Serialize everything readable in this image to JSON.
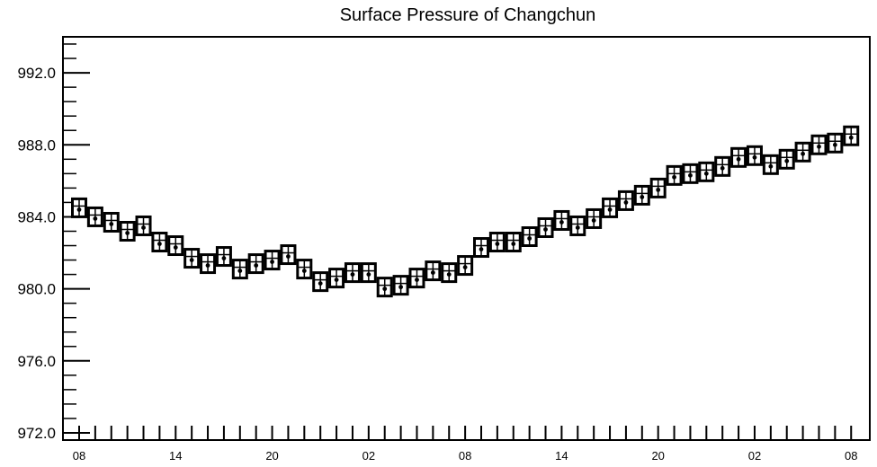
{
  "chart_data": {
    "type": "scatter",
    "title": "Surface Pressure of Changchun",
    "xlabel": "",
    "ylabel": "",
    "ylim": [
      971.6,
      994.0
    ],
    "y_ticks": [
      "972.0",
      "976.0",
      "980.0",
      "984.0",
      "988.0",
      "992.0"
    ],
    "y_tick_values": [
      972,
      976,
      980,
      984,
      988,
      992
    ],
    "x_tick_labels": [
      "08",
      "14",
      "20",
      "02",
      "08",
      "14",
      "20",
      "02",
      "08"
    ],
    "x_tick_indices": [
      0,
      6,
      12,
      18,
      24,
      30,
      36,
      42,
      48
    ],
    "grid": false,
    "series": [
      {
        "values": [
          984.4,
          983.9,
          983.6,
          983.1,
          983.4,
          982.5,
          982.3,
          981.6,
          981.3,
          981.7,
          981.0,
          981.3,
          981.5,
          981.8,
          981.0,
          980.3,
          980.5,
          980.8,
          980.8,
          980.0,
          980.1,
          980.5,
          980.9,
          980.8,
          981.2,
          982.2,
          982.5,
          982.5,
          982.8,
          983.3,
          983.7,
          983.4,
          983.8,
          984.4,
          984.8,
          985.1,
          985.5,
          986.2,
          986.3,
          986.4,
          986.7,
          987.2,
          987.3,
          986.8,
          987.1,
          987.5,
          987.9,
          988.0,
          988.4
        ]
      }
    ]
  }
}
